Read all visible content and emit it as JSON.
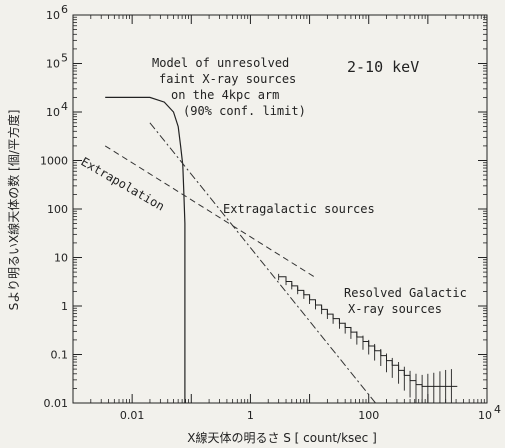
{
  "chart_data": {
    "type": "line",
    "xlabel": "X線天体の明るさ S [ count/ksec ]",
    "ylabel": "Sより明るいX線天体の数 [個/平方度]",
    "xscale": "log",
    "yscale": "log",
    "xlim": [
      0.001,
      10000
    ],
    "ylim": [
      0.01,
      1000000
    ],
    "x_ticks": [
      {
        "value": 0.01,
        "label": "0.01"
      },
      {
        "value": 1,
        "label": "1"
      },
      {
        "value": 100,
        "label": "100"
      }
    ],
    "x_top_tick": {
      "value": 10000,
      "base": "10",
      "exp": "4"
    },
    "y_ticks": [
      {
        "value": 0.01,
        "label": "0.01"
      },
      {
        "value": 0.1,
        "label": "0.1"
      },
      {
        "value": 1,
        "label": "1"
      },
      {
        "value": 10,
        "label": "10"
      },
      {
        "value": 100,
        "label": "100"
      },
      {
        "value": 1000,
        "label": "1000"
      }
    ],
    "y_pow_ticks": [
      {
        "value": 10000,
        "base": "10",
        "exp": "4"
      },
      {
        "value": 100000,
        "base": "10",
        "exp": "5"
      },
      {
        "value": 1000000,
        "base": "10",
        "exp": "6"
      }
    ],
    "series": [
      {
        "style": "solid",
        "x": [
          0.0035,
          0.02,
          0.035,
          0.05,
          0.06,
          0.066,
          0.072,
          0.075,
          0.078,
          0.078
        ],
        "y": [
          20000,
          20000,
          16000,
          10000,
          5000,
          2000,
          800,
          200,
          50,
          0.01
        ]
      },
      {
        "style": "dashed",
        "x": [
          0.0035,
          12
        ],
        "y": [
          2000,
          4
        ]
      },
      {
        "style": "dash-dot",
        "x": [
          0.02,
          130
        ],
        "y": [
          6000,
          0.01
        ]
      },
      {
        "style": "staircase",
        "x": [
          3,
          4,
          5,
          6.3,
          8,
          10,
          12.6,
          16,
          20,
          25,
          32,
          40,
          50,
          63,
          80,
          100,
          126,
          160,
          200,
          250,
          320,
          400,
          500,
          630,
          800,
          1000,
          1260,
          1600,
          2000,
          2500
        ],
        "y": [
          4,
          3.2,
          2.6,
          2.1,
          1.7,
          1.35,
          1.05,
          0.85,
          0.68,
          0.55,
          0.44,
          0.36,
          0.29,
          0.23,
          0.185,
          0.15,
          0.12,
          0.095,
          0.075,
          0.06,
          0.047,
          0.037,
          0.029,
          0.024,
          0.022,
          0.022,
          0.022,
          0.022,
          0.022,
          0.022
        ],
        "error_low": [
          3.4,
          2.7,
          2.2,
          1.75,
          1.4,
          1.1,
          0.85,
          0.68,
          0.54,
          0.43,
          0.34,
          0.27,
          0.21,
          0.16,
          0.125,
          0.1,
          0.075,
          0.058,
          0.043,
          0.033,
          0.025,
          0.018,
          0.013,
          0.01,
          0.01,
          0.01,
          0.01,
          0.01,
          0.01,
          0.01
        ],
        "error_high": [
          4.6,
          3.7,
          3.0,
          2.45,
          2.0,
          1.6,
          1.25,
          1.02,
          0.82,
          0.67,
          0.54,
          0.45,
          0.37,
          0.3,
          0.245,
          0.2,
          0.165,
          0.13,
          0.105,
          0.085,
          0.07,
          0.056,
          0.046,
          0.04,
          0.038,
          0.04,
          0.042,
          0.045,
          0.048,
          0.05
        ]
      }
    ],
    "annotations": {
      "model": [
        "Model of unresolved",
        "faint X-ray sources",
        "on the 4kpc arm",
        "(90% conf. limit)"
      ],
      "energy": "2-10 keV",
      "extrapolation": "Extrapolation",
      "extragalactic": "Extragalactic sources",
      "galactic": [
        "Resolved Galactic",
        "X-ray sources"
      ]
    },
    "grid": false
  }
}
